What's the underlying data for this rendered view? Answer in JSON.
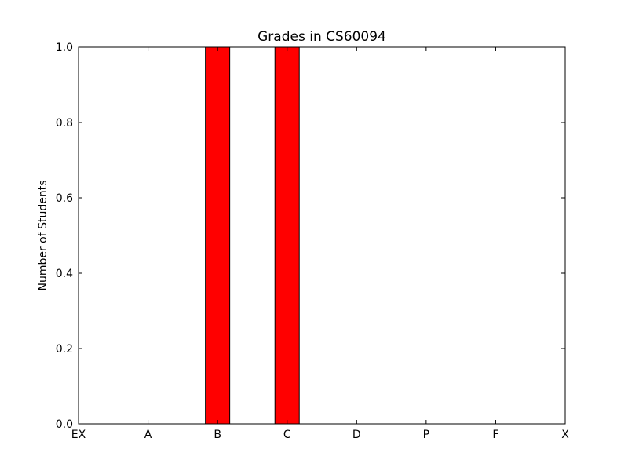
{
  "chart_data": {
    "type": "bar",
    "title": "Grades in CS60094",
    "xlabel": "",
    "ylabel": "Number of Students",
    "categories": [
      "EX",
      "A",
      "B",
      "C",
      "D",
      "P",
      "F",
      "X"
    ],
    "values": [
      0,
      0,
      1,
      1,
      0,
      0,
      0,
      0
    ],
    "ylim": [
      0,
      1.0
    ],
    "yticks": [
      "0.0",
      "0.2",
      "0.4",
      "0.6",
      "0.8",
      "1.0"
    ],
    "bar_color": "#ff0000",
    "edge_color": "#000000",
    "grid": false
  }
}
